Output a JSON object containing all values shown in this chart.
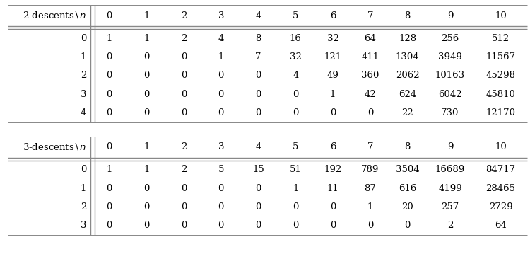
{
  "table1_header": [
    "2-descents\\backslash n",
    "0",
    "1",
    "2",
    "3",
    "4",
    "5",
    "6",
    "7",
    "8",
    "9",
    "10"
  ],
  "table1_rows": [
    [
      "0",
      "1",
      "1",
      "2",
      "4",
      "8",
      "16",
      "32",
      "64",
      "128",
      "256",
      "512"
    ],
    [
      "1",
      "0",
      "0",
      "0",
      "1",
      "7",
      "32",
      "121",
      "411",
      "1304",
      "3949",
      "11567"
    ],
    [
      "2",
      "0",
      "0",
      "0",
      "0",
      "0",
      "4",
      "49",
      "360",
      "2062",
      "10163",
      "45298"
    ],
    [
      "3",
      "0",
      "0",
      "0",
      "0",
      "0",
      "0",
      "1",
      "42",
      "624",
      "6042",
      "45810"
    ],
    [
      "4",
      "0",
      "0",
      "0",
      "0",
      "0",
      "0",
      "0",
      "0",
      "22",
      "730",
      "12170"
    ]
  ],
  "table2_header": [
    "3-descents\\backslash n",
    "0",
    "1",
    "2",
    "3",
    "4",
    "5",
    "6",
    "7",
    "8",
    "9",
    "10"
  ],
  "table2_rows": [
    [
      "0",
      "1",
      "1",
      "2",
      "5",
      "15",
      "51",
      "192",
      "789",
      "3504",
      "16689",
      "84717"
    ],
    [
      "1",
      "0",
      "0",
      "0",
      "0",
      "0",
      "1",
      "11",
      "87",
      "616",
      "4199",
      "28465"
    ],
    [
      "2",
      "0",
      "0",
      "0",
      "0",
      "0",
      "0",
      "0",
      "1",
      "20",
      "257",
      "2729"
    ],
    [
      "3",
      "0",
      "0",
      "0",
      "0",
      "0",
      "0",
      "0",
      "0",
      "0",
      "2",
      "64"
    ]
  ],
  "bg_color": "#ffffff",
  "text_color": "#000000",
  "line_color": "#888888",
  "font_size": 9.5,
  "fig_width": 7.5,
  "fig_height": 3.66,
  "dpi": 100
}
